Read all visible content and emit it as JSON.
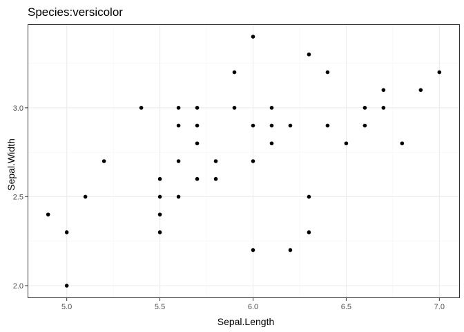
{
  "chart_data": {
    "type": "scatter",
    "title": "Species:versicolor",
    "xlabel": "Sepal.Length",
    "ylabel": "Sepal.Width",
    "xlim": [
      4.79,
      7.11
    ],
    "ylim": [
      1.93,
      3.47
    ],
    "xticks": [
      5.0,
      5.5,
      6.0,
      6.5,
      7.0
    ],
    "xtick_labels": [
      "5.0",
      "5.5",
      "6.0",
      "6.5",
      "7.0"
    ],
    "yticks": [
      2.0,
      2.5,
      3.0
    ],
    "ytick_labels": [
      "2.0",
      "2.5",
      "3.0"
    ],
    "grid": true,
    "colors": {
      "points": "#000000",
      "panel_border": "#333333",
      "grid_major": "#ebebeb",
      "grid_minor": "#f5f5f5",
      "tick_label": "#4d4d4d"
    },
    "points": [
      {
        "x": 7.0,
        "y": 3.2
      },
      {
        "x": 6.4,
        "y": 3.2
      },
      {
        "x": 6.9,
        "y": 3.1
      },
      {
        "x": 5.5,
        "y": 2.3
      },
      {
        "x": 6.5,
        "y": 2.8
      },
      {
        "x": 5.7,
        "y": 2.8
      },
      {
        "x": 6.3,
        "y": 3.3
      },
      {
        "x": 4.9,
        "y": 2.4
      },
      {
        "x": 6.6,
        "y": 2.9
      },
      {
        "x": 5.2,
        "y": 2.7
      },
      {
        "x": 5.0,
        "y": 2.0
      },
      {
        "x": 5.9,
        "y": 3.0
      },
      {
        "x": 6.0,
        "y": 2.2
      },
      {
        "x": 6.1,
        "y": 2.9
      },
      {
        "x": 5.6,
        "y": 2.9
      },
      {
        "x": 6.7,
        "y": 3.1
      },
      {
        "x": 5.6,
        "y": 3.0
      },
      {
        "x": 5.8,
        "y": 2.7
      },
      {
        "x": 6.2,
        "y": 2.2
      },
      {
        "x": 5.6,
        "y": 2.5
      },
      {
        "x": 5.9,
        "y": 3.2
      },
      {
        "x": 6.1,
        "y": 2.8
      },
      {
        "x": 6.3,
        "y": 2.5
      },
      {
        "x": 6.4,
        "y": 2.9
      },
      {
        "x": 6.6,
        "y": 3.0
      },
      {
        "x": 6.8,
        "y": 2.8
      },
      {
        "x": 6.7,
        "y": 3.0
      },
      {
        "x": 6.0,
        "y": 2.9
      },
      {
        "x": 5.7,
        "y": 2.6
      },
      {
        "x": 5.5,
        "y": 2.4
      },
      {
        "x": 5.5,
        "y": 2.5
      },
      {
        "x": 5.8,
        "y": 2.6
      },
      {
        "x": 6.0,
        "y": 2.7
      },
      {
        "x": 5.4,
        "y": 3.0
      },
      {
        "x": 6.0,
        "y": 3.4
      },
      {
        "x": 6.3,
        "y": 2.3
      },
      {
        "x": 5.6,
        "y": 2.7
      },
      {
        "x": 5.5,
        "y": 2.6
      },
      {
        "x": 6.1,
        "y": 3.0
      },
      {
        "x": 5.0,
        "y": 2.3
      },
      {
        "x": 5.7,
        "y": 3.0
      },
      {
        "x": 5.7,
        "y": 2.9
      },
      {
        "x": 5.1,
        "y": 2.5
      },
      {
        "x": 6.2,
        "y": 2.9
      }
    ]
  }
}
